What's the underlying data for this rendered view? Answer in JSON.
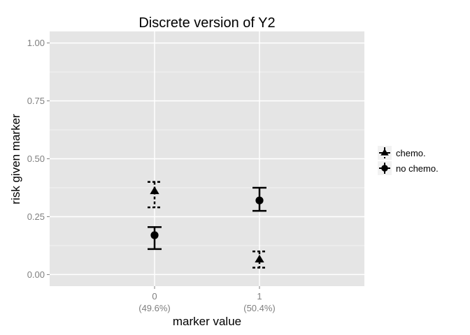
{
  "chart_data": {
    "type": "scatter",
    "title": "Discrete version of Y2",
    "xlabel": "marker value",
    "ylabel": "risk given marker",
    "categories": [
      "0",
      "1"
    ],
    "category_sublabels": [
      "(49.6%)",
      "(50.4%)"
    ],
    "y_ticks": [
      "0.00",
      "0.25",
      "0.50",
      "0.75",
      "1.00"
    ],
    "ylim": [
      -0.05,
      1.05
    ],
    "grid": true,
    "legend_position": "right",
    "series": [
      {
        "name": "chemo.",
        "marker": "triangle",
        "errorbar_style": "dashed",
        "values": [
          0.36,
          0.065
        ],
        "lower": [
          0.29,
          0.03
        ],
        "upper": [
          0.4,
          0.1
        ]
      },
      {
        "name": "no chemo.",
        "marker": "circle",
        "errorbar_style": "solid",
        "values": [
          0.17,
          0.32
        ],
        "lower": [
          0.11,
          0.275
        ],
        "upper": [
          0.205,
          0.375
        ]
      }
    ],
    "colors": {
      "panel_background": "#e5e5e5",
      "grid_major": "#ffffff",
      "grid_minor": "#f2f2f2",
      "marks": "#000000",
      "tick_text": "#7f7f7f"
    }
  }
}
